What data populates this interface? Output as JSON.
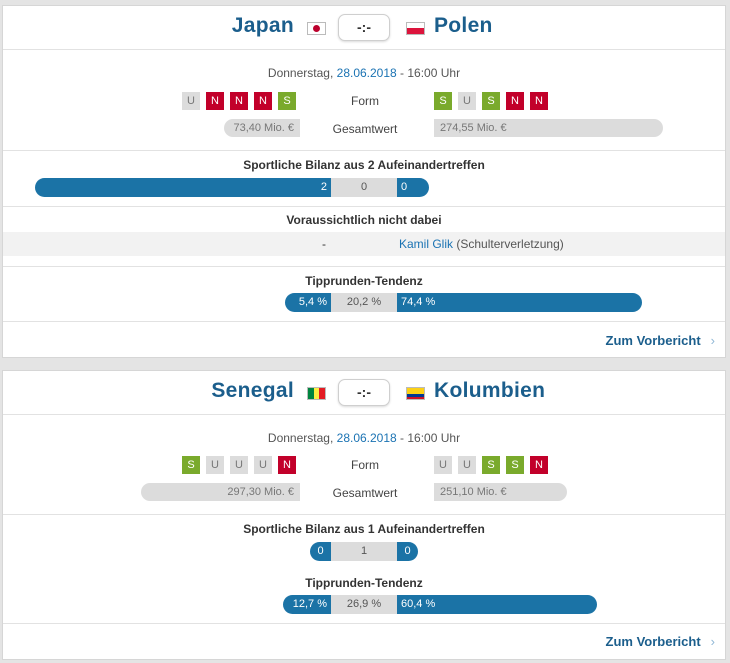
{
  "matches": [
    {
      "home": {
        "name": "Japan",
        "form": [
          "U",
          "N",
          "N",
          "N",
          "S"
        ],
        "value": "73,40 Mio. €"
      },
      "away": {
        "name": "Polen",
        "form": [
          "S",
          "U",
          "S",
          "N",
          "N"
        ],
        "value": "274,55 Mio. €"
      },
      "score": "-:-",
      "date_prefix": "Donnerstag,",
      "date_link": "28.06.2018",
      "date_suffix": "- 16:00 Uhr",
      "form_label": "Form",
      "value_label": "Gesamtwert",
      "h2h_title": "Sportliche Bilanz aus 2 Aufeinandertreffen",
      "h2h": {
        "home": "2",
        "draw": "0",
        "away": "0"
      },
      "absent_title": "Voraussichtlich nicht dabei",
      "absent_home": "-",
      "absent_away_player": "Kamil Glik",
      "absent_away_reason": "(Schulterverletzung)",
      "tendency_title": "Tipprunden-Tendenz",
      "tendency": {
        "home": "5,4 %",
        "draw": "20,2 %",
        "away": "74,4 %",
        "home_pct": 5.4,
        "draw_pct": 20.2,
        "away_pct": 74.4
      },
      "preview_label": "Zum Vorbericht"
    },
    {
      "home": {
        "name": "Senegal",
        "form": [
          "S",
          "U",
          "U",
          "U",
          "N"
        ],
        "value": "297,30 Mio. €"
      },
      "away": {
        "name": "Kolumbien",
        "form": [
          "U",
          "U",
          "S",
          "S",
          "N"
        ],
        "value": "251,10 Mio. €"
      },
      "score": "-:-",
      "date_prefix": "Donnerstag,",
      "date_link": "28.06.2018",
      "date_suffix": "- 16:00 Uhr",
      "form_label": "Form",
      "value_label": "Gesamtwert",
      "h2h_title": "Sportliche Bilanz aus 1 Aufeinandertreffen",
      "h2h": {
        "home": "0",
        "draw": "1",
        "away": "0"
      },
      "tendency_title": "Tipprunden-Tendenz",
      "tendency": {
        "home": "12,7 %",
        "draw": "26,9 %",
        "away": "60,4 %",
        "home_pct": 12.7,
        "draw_pct": 26.9,
        "away_pct": 60.4
      },
      "preview_label": "Zum Vorbericht"
    }
  ],
  "colors": {
    "win": "#7aaa2c",
    "loss": "#c2002a",
    "draw": "#dcdcdc",
    "accent": "#1b73a6"
  },
  "icons": {
    "chevron": "chevron-right-icon"
  }
}
